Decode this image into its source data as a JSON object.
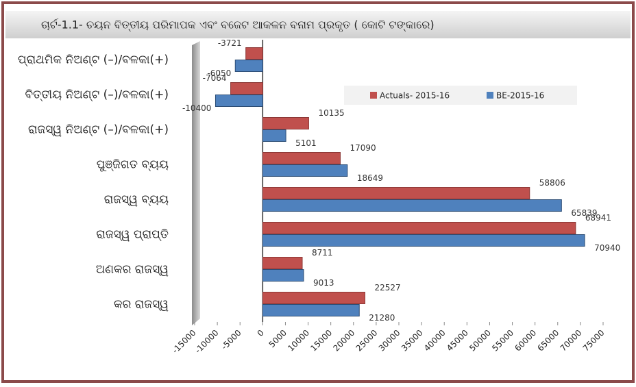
{
  "chart_data": {
    "type": "hbar",
    "title": "ଚାର୍ଟ-1.1- ଚୟନ ବିତ୍ତୀୟ ପରିମାପକ ଏବଂ ବଜେଟ ଆକଳନ ବନାମ ପ୍ରକୃତ ( କୋଟି ଟଙ୍କାରେ)",
    "categories": [
      "ପ୍ରାଥମିକ ନିଅଣ୍ଟ (–)/ବଳକା(+)",
      "ବିତ୍ତୀୟ  ନିଅଣ୍ଟ (–)/ବଳକା(+)",
      "ରାଜସ୍ୱ  ନିଅଣ୍ଟ (–)/ବଳକା(+)",
      "ପୁଞ୍ଜିଗତ ବ୍ୟୟ",
      "ରାଜସ୍ୱ ବ୍ୟୟ",
      "ରାଜସ୍ୱ ପ୍ରାପ୍ତି",
      "ଅଣକର ରାଜସ୍ୱ",
      "କର ରାଜସ୍ୱ"
    ],
    "series": [
      {
        "name": "Actuals- 2015-16",
        "color": "#c0504d",
        "values": [
          -3721,
          -7064,
          10135,
          17090,
          58806,
          68941,
          8711,
          22527
        ]
      },
      {
        "name": "BE-2015-16",
        "color": "#4f81bd",
        "values": [
          -6050,
          -10400,
          5101,
          18649,
          65839,
          70940,
          9013,
          21280
        ]
      }
    ],
    "xlim": [
      -15000,
      75000
    ],
    "xticks": [
      -15000,
      -10000,
      -5000,
      0,
      5000,
      10000,
      15000,
      20000,
      25000,
      30000,
      35000,
      40000,
      45000,
      50000,
      55000,
      60000,
      65000,
      70000,
      75000
    ]
  }
}
